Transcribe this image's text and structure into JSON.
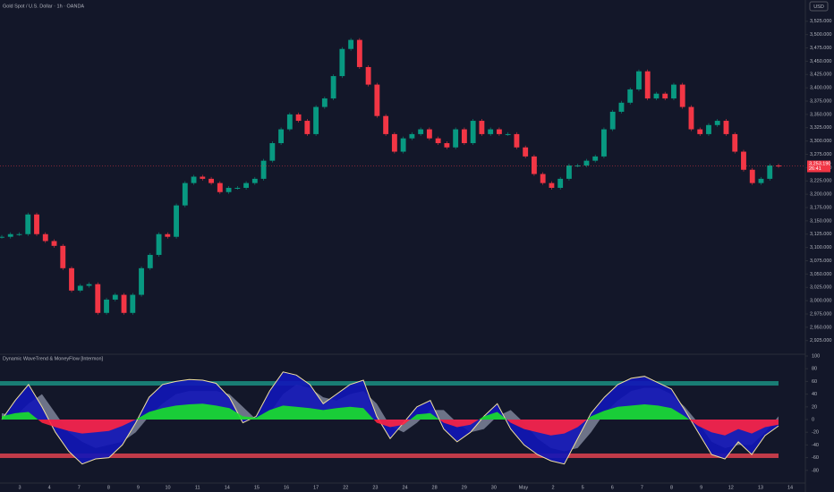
{
  "header": {
    "symbol": "Gold Spot / U.S. Dollar · 1h · OANDA",
    "currency": "USD"
  },
  "time_axis": {
    "labels": [
      "3",
      "4",
      "7",
      "8",
      "9",
      "10",
      "11",
      "14",
      "15",
      "16",
      "17",
      "22",
      "23",
      "24",
      "28",
      "29",
      "30",
      "May",
      "2",
      "5",
      "6",
      "7",
      "8",
      "9",
      "12",
      "13",
      "14"
    ]
  },
  "chart_data": [
    {
      "type": "candlestick",
      "closes": [
        3120,
        3125,
        3125,
        3162,
        3125,
        3112,
        3103,
        3061,
        3019,
        3028,
        3031,
        2977,
        3002,
        3011,
        2977,
        3011,
        3061,
        3086,
        3125,
        3120,
        3179,
        3221,
        3233,
        3229,
        3221,
        3204,
        3212,
        3212,
        3221,
        3229,
        3263,
        3296,
        3322,
        3350,
        3338,
        3313,
        3364,
        3380,
        3422,
        3473,
        3490,
        3439,
        3406,
        3347,
        3313,
        3280,
        3305,
        3313,
        3322,
        3305,
        3296,
        3288,
        3322,
        3296,
        3338,
        3313,
        3322,
        3313,
        3313,
        3288,
        3271,
        3238,
        3221,
        3212,
        3229,
        3254,
        3254,
        3263,
        3271,
        3322,
        3355,
        3372,
        3397,
        3431,
        3380,
        3389,
        3380,
        3406,
        3364,
        3322,
        3313,
        3330,
        3338,
        3313,
        3280,
        3246,
        3221,
        3229,
        3254,
        3253
      ],
      "colors": {
        "up": "#089981",
        "down": "#f23645"
      },
      "ylim": [
        2901,
        3565
      ],
      "yticks": [
        {
          "value": 3525,
          "label": "3,525.000"
        },
        {
          "value": 3500,
          "label": "3,500.000"
        },
        {
          "value": 3475,
          "label": "3,475.000"
        },
        {
          "value": 3450,
          "label": "3,450.000"
        },
        {
          "value": 3425,
          "label": "3,425.000"
        },
        {
          "value": 3400,
          "label": "3,400.000"
        },
        {
          "value": 3375,
          "label": "3,375.000"
        },
        {
          "value": 3350,
          "label": "3,350.000"
        },
        {
          "value": 3325,
          "label": "3,325.000"
        },
        {
          "value": 3300,
          "label": "3,300.000"
        },
        {
          "value": 3275,
          "label": "3,275.000"
        },
        {
          "value": 3250,
          "label": "3,250.000"
        },
        {
          "value": 3225,
          "label": "3,225.000"
        },
        {
          "value": 3200,
          "label": "3,200.000"
        },
        {
          "value": 3175,
          "label": "3,175.000"
        },
        {
          "value": 3150,
          "label": "3,150.000"
        },
        {
          "value": 3125,
          "label": "3,125.000"
        },
        {
          "value": 3100,
          "label": "3,100.000"
        },
        {
          "value": 3075,
          "label": "3,075.000"
        },
        {
          "value": 3050,
          "label": "3,050.000"
        },
        {
          "value": 3025,
          "label": "3,025.000"
        },
        {
          "value": 3000,
          "label": "3,000.000"
        },
        {
          "value": 2975,
          "label": "2,975.000"
        },
        {
          "value": 2950,
          "label": "2,950.000"
        },
        {
          "value": 2925,
          "label": "2,925.000"
        }
      ],
      "last_price": {
        "value": 3253.19,
        "label": "3,253.190",
        "countdown": "26:41",
        "color": "#f23645"
      }
    },
    {
      "type": "area",
      "title": "Dynamic WaveTrend & MoneyFlow [Intermon]",
      "ylim": [
        -100,
        100
      ],
      "yticks": [
        100,
        80,
        60,
        40,
        20,
        0,
        -20,
        -40,
        -60,
        -80
      ],
      "bands": [
        {
          "value": 57,
          "color": "#1b8f82"
        },
        {
          "value": -57,
          "color": "#e0424f"
        }
      ],
      "series": [
        {
          "color": "#8c93a8",
          "values": [
            10,
            5,
            25,
            40,
            10,
            -20,
            -35,
            -45,
            -40,
            -35,
            -20,
            5,
            25,
            40,
            45,
            45,
            45,
            40,
            20,
            0,
            10,
            40,
            55,
            50,
            35,
            30,
            40,
            45,
            25,
            -10,
            -20,
            -5,
            15,
            15,
            -5,
            -20,
            -15,
            5,
            15,
            -5,
            -30,
            -45,
            -50,
            -45,
            -20,
            10,
            30,
            45,
            50,
            50,
            40,
            20,
            -5,
            -35,
            -45,
            -40,
            -40,
            -20,
            5
          ]
        },
        {
          "color": "#1216b8",
          "line_color": "#f3e2a0",
          "values": [
            0,
            30,
            55,
            20,
            -20,
            -50,
            -70,
            -62,
            -60,
            -40,
            -5,
            35,
            55,
            60,
            63,
            62,
            57,
            35,
            -5,
            5,
            45,
            75,
            70,
            55,
            25,
            40,
            55,
            62,
            5,
            -30,
            -5,
            20,
            30,
            -15,
            -35,
            -20,
            5,
            25,
            -15,
            -40,
            -55,
            -65,
            -70,
            -30,
            10,
            35,
            55,
            65,
            68,
            58,
            48,
            15,
            -20,
            -55,
            -62,
            -35,
            -55,
            -25,
            -10
          ]
        },
        {
          "color": "#19e02a",
          "negative_color": "#ff2340",
          "values": [
            5,
            10,
            12,
            -5,
            -12,
            -18,
            -22,
            -20,
            -18,
            -10,
            0,
            12,
            18,
            22,
            24,
            25,
            22,
            18,
            5,
            3,
            15,
            22,
            20,
            18,
            15,
            18,
            20,
            18,
            -5,
            -12,
            -8,
            8,
            10,
            -5,
            -12,
            -8,
            5,
            12,
            -5,
            -15,
            -20,
            -25,
            -22,
            -12,
            5,
            14,
            20,
            22,
            24,
            22,
            18,
            5,
            -10,
            -20,
            -25,
            -15,
            -22,
            -12,
            -8
          ]
        }
      ]
    }
  ]
}
